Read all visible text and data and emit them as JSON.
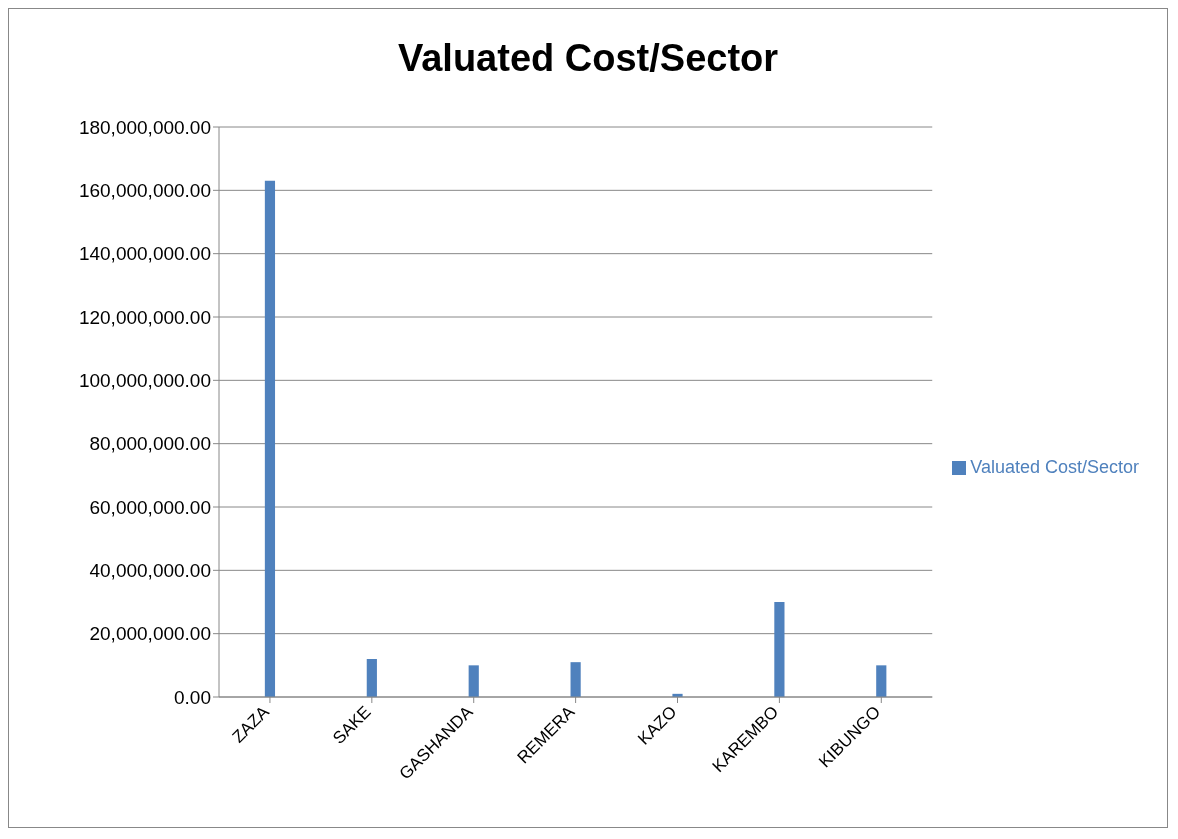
{
  "chart_data": {
    "type": "bar",
    "title": "Valuated Cost/Sector",
    "categories": [
      "ZAZA",
      "SAKE",
      "GASHANDA",
      "REMERA",
      "KAZO",
      "KAREMBO",
      "KIBUNGO"
    ],
    "series": [
      {
        "name": "Valuated Cost/Sector",
        "color": "#4f81bd",
        "values": [
          163000000,
          12000000,
          10000000,
          11000000,
          1000000,
          30000000,
          10000000
        ]
      }
    ],
    "ylim": [
      0,
      180000000
    ],
    "yticks": [
      {
        "value": 0,
        "label": "0.00"
      },
      {
        "value": 20000000,
        "label": "20,000,000.00"
      },
      {
        "value": 40000000,
        "label": "40,000,000.00"
      },
      {
        "value": 60000000,
        "label": "60,000,000.00"
      },
      {
        "value": 80000000,
        "label": "80,000,000.00"
      },
      {
        "value": 100000000,
        "label": "100,000,000.00"
      },
      {
        "value": 120000000,
        "label": "120,000,000.00"
      },
      {
        "value": 140000000,
        "label": "140,000,000.00"
      },
      {
        "value": 160000000,
        "label": "160,000,000.00"
      },
      {
        "value": 180000000,
        "label": "180,000,000.00"
      }
    ],
    "grid": "y",
    "legend": "right"
  }
}
